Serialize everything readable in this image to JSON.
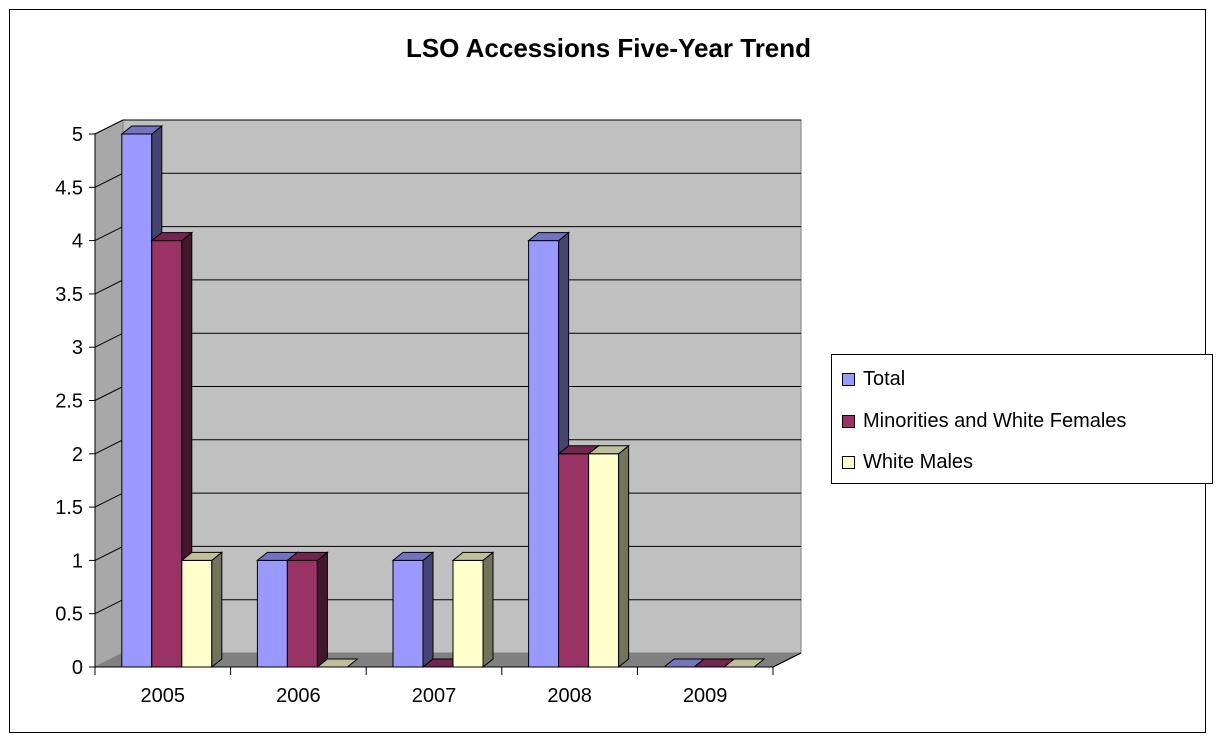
{
  "chart_data": {
    "type": "bar",
    "title": "LSO Accessions Five-Year Trend",
    "xlabel": "",
    "ylabel": "",
    "categories": [
      "2005",
      "2006",
      "2007",
      "2008",
      "2009"
    ],
    "ylim": [
      0,
      5
    ],
    "yticks": [
      "0",
      "0.5",
      "1",
      "1.5",
      "2",
      "2.5",
      "3",
      "3.5",
      "4",
      "4.5",
      "5"
    ],
    "series": [
      {
        "name": "Total",
        "values": [
          5,
          1,
          1,
          4,
          0
        ],
        "color": "#9999ff"
      },
      {
        "name": "Minorities and White Females",
        "values": [
          4,
          1,
          0,
          2,
          0
        ],
        "color": "#993366"
      },
      {
        "name": "White Males",
        "values": [
          1,
          0,
          1,
          2,
          0
        ],
        "color": "#ffffcc"
      }
    ],
    "grid": true,
    "legend_position": "right",
    "style": "3d-clustered-column"
  }
}
